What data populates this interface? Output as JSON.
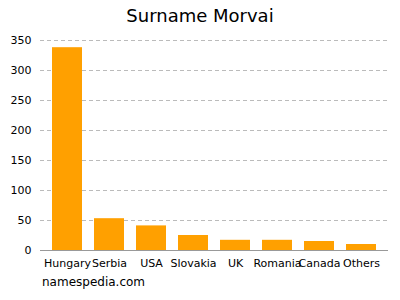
{
  "chart_data": {
    "type": "bar",
    "title": "Surname Morvai",
    "caption": "namespedia.com",
    "categories": [
      "Hungary",
      "Serbia",
      "USA",
      "Slovakia",
      "UK",
      "Romania",
      "Canada",
      "Others"
    ],
    "values": [
      338,
      53,
      41,
      25,
      17,
      17,
      15,
      10
    ],
    "color": "#ffa000",
    "ylim": [
      0,
      350
    ],
    "yticks": [
      0,
      50,
      100,
      150,
      200,
      250,
      300,
      350
    ],
    "grid": true
  }
}
